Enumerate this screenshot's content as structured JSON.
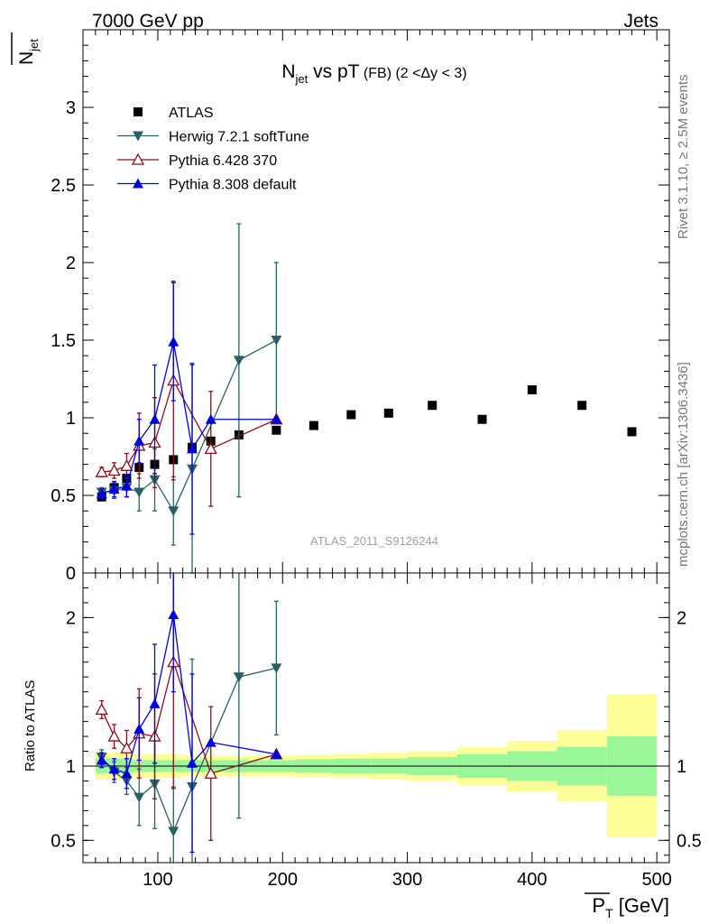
{
  "header": {
    "left": "7000 GeV pp",
    "right": "Jets"
  },
  "side_labels": {
    "rivet": "Rivet 3.1.10, ≥ 2.5M events",
    "mcplots": "mcplots.cern.ch [arXiv:1306.3436]"
  },
  "watermark": "ATLAS_2011_S9126244",
  "colors": {
    "atlas": "#000000",
    "herwig": "#2a5f66",
    "pythia6": "#8b0f1a",
    "pythia8": "#0000dd",
    "band_inner": "#99f799",
    "band_outer": "#ffff99"
  },
  "chart_data": [
    {
      "type": "scatter",
      "panel": "main",
      "title": {
        "main": "N",
        "sub": "jet",
        "rest": " vs pT",
        "small": " (FB)  (2 <Δy < 3)"
      },
      "ylabel": {
        "main": "N",
        "sub": "jet"
      },
      "xlim": [
        40,
        510
      ],
      "ylim": [
        0,
        3.5
      ],
      "yticks": [
        0,
        0.5,
        1,
        1.5,
        2,
        2.5,
        3
      ],
      "ytick_labels": [
        "0",
        "0.5",
        "1",
        "1.5",
        "2",
        "2.5",
        "3"
      ],
      "legend_position": "top-left",
      "series": [
        {
          "name": "ATLAS",
          "key": "atlas",
          "marker": "square",
          "points": [
            {
              "x": 55,
              "y": 0.49
            },
            {
              "x": 65,
              "y": 0.55
            },
            {
              "x": 75,
              "y": 0.61
            },
            {
              "x": 85,
              "y": 0.68
            },
            {
              "x": 97.5,
              "y": 0.7
            },
            {
              "x": 112.5,
              "y": 0.73
            },
            {
              "x": 127.5,
              "y": 0.81
            },
            {
              "x": 142.5,
              "y": 0.85
            },
            {
              "x": 165,
              "y": 0.89
            },
            {
              "x": 195,
              "y": 0.92
            },
            {
              "x": 225,
              "y": 0.95
            },
            {
              "x": 255,
              "y": 1.02
            },
            {
              "x": 285,
              "y": 1.03
            },
            {
              "x": 320,
              "y": 1.08
            },
            {
              "x": 360,
              "y": 0.99
            },
            {
              "x": 400,
              "y": 1.18
            },
            {
              "x": 440,
              "y": 1.08
            },
            {
              "x": 480,
              "y": 0.91
            }
          ]
        },
        {
          "name": "Herwig 7.2.1 softTune",
          "key": "herwig",
          "marker": "triangle-down",
          "points": [
            {
              "x": 55,
              "y": 0.52,
              "err": 0.03
            },
            {
              "x": 65,
              "y": 0.53,
              "err": 0.05
            },
            {
              "x": 75,
              "y": 0.55,
              "err": 0.06
            },
            {
              "x": 85,
              "y": 0.52,
              "err": 0.12
            },
            {
              "x": 97.5,
              "y": 0.6,
              "err": 0.2
            },
            {
              "x": 112.5,
              "y": 0.4,
              "err": 0.22
            },
            {
              "x": 127.5,
              "y": 0.67,
              "err": 0.67
            },
            {
              "x": 165,
              "y": 1.37,
              "err": 0.88
            },
            {
              "x": 195,
              "y": 1.5,
              "err": 0.5
            }
          ]
        },
        {
          "name": "Pythia 6.428 370",
          "key": "pythia6",
          "marker": "triangle-up-open",
          "points": [
            {
              "x": 55,
              "y": 0.65,
              "err": 0.03
            },
            {
              "x": 65,
              "y": 0.66,
              "err": 0.05
            },
            {
              "x": 75,
              "y": 0.69,
              "err": 0.08
            },
            {
              "x": 85,
              "y": 0.82,
              "err": 0.21
            },
            {
              "x": 97.5,
              "y": 0.84,
              "err": 0.29
            },
            {
              "x": 112.5,
              "y": 1.24,
              "err": 0.64
            },
            {
              "x": 142.5,
              "y": 0.8,
              "err": 0.37
            },
            {
              "x": 195,
              "y": 0.99,
              "err": 0.0
            }
          ]
        },
        {
          "name": "Pythia 8.308 default",
          "key": "pythia8",
          "marker": "triangle-up",
          "points": [
            {
              "x": 55,
              "y": 0.51,
              "err": 0.03
            },
            {
              "x": 65,
              "y": 0.54,
              "err": 0.05
            },
            {
              "x": 75,
              "y": 0.56,
              "err": 0.07
            },
            {
              "x": 85,
              "y": 0.85,
              "err": 0.14
            },
            {
              "x": 97.5,
              "y": 0.99,
              "err": 0.35
            },
            {
              "x": 112.5,
              "y": 1.49,
              "err": 0.38
            },
            {
              "x": 127.5,
              "y": 0.8,
              "err": 0.55
            },
            {
              "x": 142.5,
              "y": 0.99,
              "err": 0.0
            },
            {
              "x": 195,
              "y": 0.99,
              "err": 0.0
            }
          ]
        }
      ]
    },
    {
      "type": "scatter",
      "panel": "ratio",
      "ylabel": "Ratio to ATLAS",
      "xlabel": {
        "main": "P",
        "sub": "T",
        "unit": " [GeV]"
      },
      "xlim": [
        40,
        510
      ],
      "ylim": [
        0.35,
        2.3
      ],
      "xticks": [
        100,
        200,
        300,
        400,
        500
      ],
      "xtick_labels": [
        "100",
        "200",
        "300",
        "400",
        "500"
      ],
      "yticks": [
        0.5,
        1,
        2
      ],
      "ytick_labels": [
        "0.5",
        "1",
        "2"
      ],
      "reference_line": 1,
      "uncertainty_bins": [
        {
          "x0": 50,
          "x1": 60,
          "inner": 0.05,
          "outer": 0.09
        },
        {
          "x0": 60,
          "x1": 70,
          "inner": 0.05,
          "outer": 0.09
        },
        {
          "x0": 70,
          "x1": 80,
          "inner": 0.05,
          "outer": 0.09
        },
        {
          "x0": 80,
          "x1": 90,
          "inner": 0.04,
          "outer": 0.08
        },
        {
          "x0": 90,
          "x1": 105,
          "inner": 0.04,
          "outer": 0.08
        },
        {
          "x0": 105,
          "x1": 120,
          "inner": 0.04,
          "outer": 0.08
        },
        {
          "x0": 120,
          "x1": 135,
          "inner": 0.04,
          "outer": 0.07
        },
        {
          "x0": 135,
          "x1": 150,
          "inner": 0.04,
          "outer": 0.07
        },
        {
          "x0": 150,
          "x1": 180,
          "inner": 0.04,
          "outer": 0.07
        },
        {
          "x0": 180,
          "x1": 210,
          "inner": 0.04,
          "outer": 0.07
        },
        {
          "x0": 210,
          "x1": 240,
          "inner": 0.045,
          "outer": 0.075
        },
        {
          "x0": 240,
          "x1": 270,
          "inner": 0.05,
          "outer": 0.08
        },
        {
          "x0": 270,
          "x1": 300,
          "inner": 0.05,
          "outer": 0.09
        },
        {
          "x0": 300,
          "x1": 340,
          "inner": 0.06,
          "outer": 0.1
        },
        {
          "x0": 340,
          "x1": 380,
          "inner": 0.08,
          "outer": 0.13
        },
        {
          "x0": 380,
          "x1": 420,
          "inner": 0.1,
          "outer": 0.17
        },
        {
          "x0": 420,
          "x1": 460,
          "inner": 0.13,
          "outer": 0.24
        },
        {
          "x0": 460,
          "x1": 500,
          "inner": 0.2,
          "outer": 0.48
        }
      ],
      "series": [
        {
          "name": "Herwig 7.2.1 softTune",
          "key": "herwig",
          "marker": "triangle-down",
          "points": [
            {
              "x": 55,
              "y": 1.06,
              "err": 0.05
            },
            {
              "x": 65,
              "y": 0.96,
              "err": 0.07
            },
            {
              "x": 75,
              "y": 0.9,
              "err": 0.09
            },
            {
              "x": 85,
              "y": 0.79,
              "err": 0.19
            },
            {
              "x": 97.5,
              "y": 0.88,
              "err": 0.3
            },
            {
              "x": 112.5,
              "y": 0.56,
              "err": 0.3
            },
            {
              "x": 127.5,
              "y": 0.86,
              "err": 0.86
            },
            {
              "x": 165,
              "y": 1.6,
              "err": 0.95
            },
            {
              "x": 195,
              "y": 1.66,
              "err": 0.45
            }
          ]
        },
        {
          "name": "Pythia 6.428 370",
          "key": "pythia6",
          "marker": "triangle-up-open",
          "points": [
            {
              "x": 55,
              "y": 1.38,
              "err": 0.06
            },
            {
              "x": 65,
              "y": 1.2,
              "err": 0.08
            },
            {
              "x": 75,
              "y": 1.12,
              "err": 0.12
            },
            {
              "x": 85,
              "y": 1.22,
              "err": 0.3
            },
            {
              "x": 97.5,
              "y": 1.2,
              "err": 0.42
            },
            {
              "x": 112.5,
              "y": 1.7,
              "err": 0.85
            },
            {
              "x": 142.5,
              "y": 0.95,
              "err": 0.45
            },
            {
              "x": 195,
              "y": 1.08,
              "err": 0.0
            }
          ]
        },
        {
          "name": "Pythia 8.308 default",
          "key": "pythia8",
          "marker": "triangle-up",
          "points": [
            {
              "x": 55,
              "y": 1.04,
              "err": 0.05
            },
            {
              "x": 65,
              "y": 0.98,
              "err": 0.07
            },
            {
              "x": 75,
              "y": 0.95,
              "err": 0.1
            },
            {
              "x": 85,
              "y": 1.25,
              "err": 0.21
            },
            {
              "x": 97.5,
              "y": 1.42,
              "err": 0.4
            },
            {
              "x": 112.5,
              "y": 2.02,
              "err": 0.52
            },
            {
              "x": 127.5,
              "y": 1.02,
              "err": 0.6
            },
            {
              "x": 142.5,
              "y": 1.16,
              "err": 0.0
            },
            {
              "x": 195,
              "y": 1.08,
              "err": 0.0
            }
          ]
        }
      ]
    }
  ]
}
